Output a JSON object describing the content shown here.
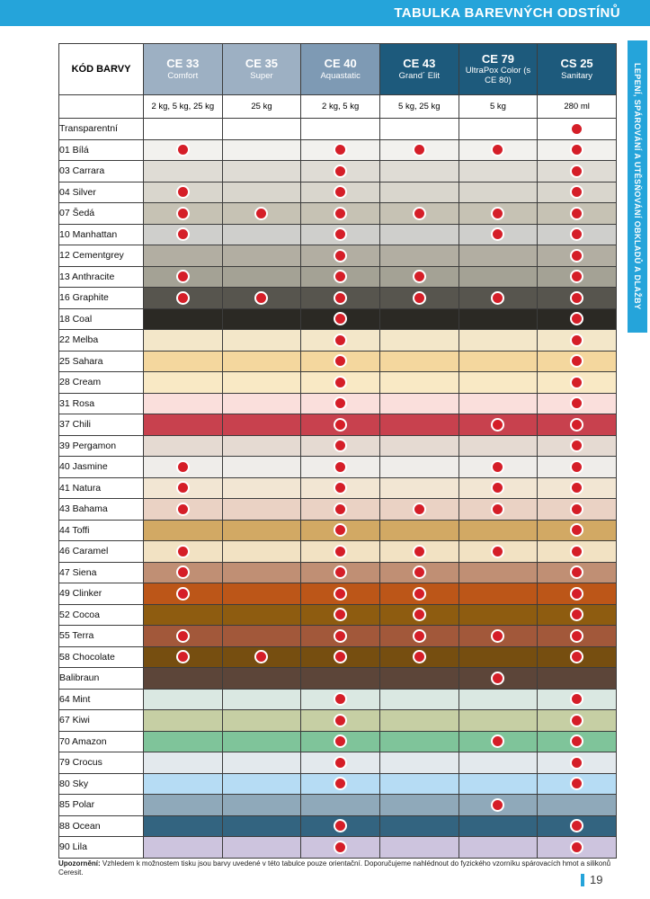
{
  "page": {
    "title_bar": {
      "text": "TABULKA BAREVNÝCH ODSTÍNŮ",
      "bg": "#25a4da"
    },
    "side_tab": {
      "text": "LEPENÍ, SPÁROVÁNÍ A UTĚSŇOVÁNÍ OBKLADŮ A DLAŽBY",
      "bg": "#25a4da"
    },
    "footer_note": {
      "label": "Upozornění:",
      "text": " Vzhledem k možnostem tisku jsou barvy uvedené v této tabulce pouze orientační. Doporučujeme nahlédnout do fyzického vzorníku spárovacích hmot a silikonů Ceresit."
    },
    "page_number": "19"
  },
  "table": {
    "corner_header": "KÓD BARVY",
    "dot_color": "#d51e28",
    "header_colors": {
      "light": "#9db0c3",
      "medium": "#7e9ab4",
      "dark": "#1d5a7c"
    },
    "columns": [
      {
        "code": "CE 33",
        "name": "Comfort",
        "pack": "2 kg, 5 kg, 25 kg",
        "tone": "light"
      },
      {
        "code": "CE 35",
        "name": "Super",
        "pack": "25 kg",
        "tone": "light"
      },
      {
        "code": "CE 40",
        "name": "Aquastatic",
        "pack": "2 kg, 5 kg",
        "tone": "medium"
      },
      {
        "code": "CE 43",
        "name": "Grand´ Elit",
        "pack": "5 kg, 25 kg",
        "tone": "dark"
      },
      {
        "code": "CE 79",
        "name": "UltraPox Color (s CE 80)",
        "pack": "5 kg",
        "tone": "dark"
      },
      {
        "code": "CS 25",
        "name": "Sanitary",
        "pack": "280 ml",
        "tone": "dark"
      }
    ],
    "rows": [
      {
        "label": "Transparentní",
        "color": "#ffffff",
        "dots": [
          0,
          0,
          0,
          0,
          0,
          1
        ]
      },
      {
        "label": "01 Bílá",
        "color": "#f2f1ee",
        "dots": [
          1,
          0,
          1,
          1,
          1,
          1
        ]
      },
      {
        "label": "03 Carrara",
        "color": "#dfdcd5",
        "dots": [
          0,
          0,
          1,
          0,
          0,
          1
        ]
      },
      {
        "label": "04 Silver",
        "color": "#d9d6cd",
        "dots": [
          1,
          0,
          1,
          0,
          0,
          1
        ]
      },
      {
        "label": "07 Šedá",
        "color": "#c6c2b4",
        "dots": [
          1,
          1,
          1,
          1,
          1,
          1
        ]
      },
      {
        "label": "10 Manhattan",
        "color": "#cfcfcc",
        "dots": [
          1,
          0,
          1,
          0,
          1,
          1
        ]
      },
      {
        "label": "12 Cementgrey",
        "color": "#b2aea2",
        "dots": [
          0,
          0,
          1,
          0,
          0,
          1
        ]
      },
      {
        "label": "13 Anthracite",
        "color": "#a4a295",
        "dots": [
          1,
          0,
          1,
          1,
          0,
          1
        ]
      },
      {
        "label": "16 Graphite",
        "color": "#57554e",
        "dots": [
          1,
          1,
          1,
          1,
          1,
          1
        ]
      },
      {
        "label": "18 Coal",
        "color": "#2b2924",
        "dots": [
          0,
          0,
          1,
          0,
          0,
          1
        ]
      },
      {
        "label": "22 Melba",
        "color": "#f3e7c9",
        "dots": [
          0,
          0,
          1,
          0,
          0,
          1
        ]
      },
      {
        "label": "25 Sahara",
        "color": "#f4d79e",
        "dots": [
          0,
          0,
          1,
          0,
          0,
          1
        ]
      },
      {
        "label": "28 Cream",
        "color": "#f9e9c5",
        "dots": [
          0,
          0,
          1,
          0,
          0,
          1
        ]
      },
      {
        "label": "31 Rosa",
        "color": "#fadfdc",
        "dots": [
          0,
          0,
          1,
          0,
          0,
          1
        ]
      },
      {
        "label": "37 Chili",
        "color": "#c8414e",
        "dots": [
          0,
          0,
          1,
          0,
          1,
          1
        ]
      },
      {
        "label": "39 Pergamon",
        "color": "#e5dad2",
        "dots": [
          0,
          0,
          1,
          0,
          0,
          1
        ]
      },
      {
        "label": "40 Jasmine",
        "color": "#efedea",
        "dots": [
          1,
          0,
          1,
          0,
          1,
          1
        ]
      },
      {
        "label": "41 Natura",
        "color": "#f2e6d3",
        "dots": [
          1,
          0,
          1,
          0,
          1,
          1
        ]
      },
      {
        "label": "43 Bahama",
        "color": "#ead2c4",
        "dots": [
          1,
          0,
          1,
          1,
          1,
          1
        ]
      },
      {
        "label": "44 Toffi",
        "color": "#d2a964",
        "dots": [
          0,
          0,
          1,
          0,
          0,
          1
        ]
      },
      {
        "label": "46 Caramel",
        "color": "#f2e2c3",
        "dots": [
          1,
          0,
          1,
          1,
          1,
          1
        ]
      },
      {
        "label": "47 Siena",
        "color": "#c08f74",
        "dots": [
          1,
          0,
          1,
          1,
          0,
          1
        ]
      },
      {
        "label": "49 Clinker",
        "color": "#bc5618",
        "dots": [
          1,
          0,
          1,
          1,
          0,
          1
        ]
      },
      {
        "label": "52 Cocoa",
        "color": "#8e5c10",
        "dots": [
          0,
          0,
          1,
          1,
          0,
          1
        ]
      },
      {
        "label": "55 Terra",
        "color": "#a2583a",
        "dots": [
          1,
          0,
          1,
          1,
          1,
          1
        ]
      },
      {
        "label": "58 Chocolate",
        "color": "#764e10",
        "dots": [
          1,
          1,
          1,
          1,
          0,
          1
        ]
      },
      {
        "label": "Balibraun",
        "color": "#5c4539",
        "dots": [
          0,
          0,
          0,
          0,
          1,
          0
        ]
      },
      {
        "label": "64 Mint",
        "color": "#dae8e2",
        "dots": [
          0,
          0,
          1,
          0,
          0,
          1
        ]
      },
      {
        "label": "67 Kiwi",
        "color": "#c6cfa4",
        "dots": [
          0,
          0,
          1,
          0,
          0,
          1
        ]
      },
      {
        "label": "70 Amazon",
        "color": "#7fc49a",
        "dots": [
          0,
          0,
          1,
          0,
          1,
          1
        ]
      },
      {
        "label": "79 Crocus",
        "color": "#e3e9ed",
        "dots": [
          0,
          0,
          1,
          0,
          0,
          1
        ]
      },
      {
        "label": "80 Sky",
        "color": "#b6dcf4",
        "dots": [
          0,
          0,
          1,
          0,
          0,
          1
        ]
      },
      {
        "label": "85 Polar",
        "color": "#8fa9ba",
        "dots": [
          0,
          0,
          0,
          0,
          1,
          0
        ]
      },
      {
        "label": "88 Ocean",
        "color": "#336480",
        "dots": [
          0,
          0,
          1,
          0,
          0,
          1
        ]
      },
      {
        "label": "90 Lila",
        "color": "#cdc4de",
        "dots": [
          0,
          0,
          1,
          0,
          0,
          1
        ]
      }
    ]
  }
}
